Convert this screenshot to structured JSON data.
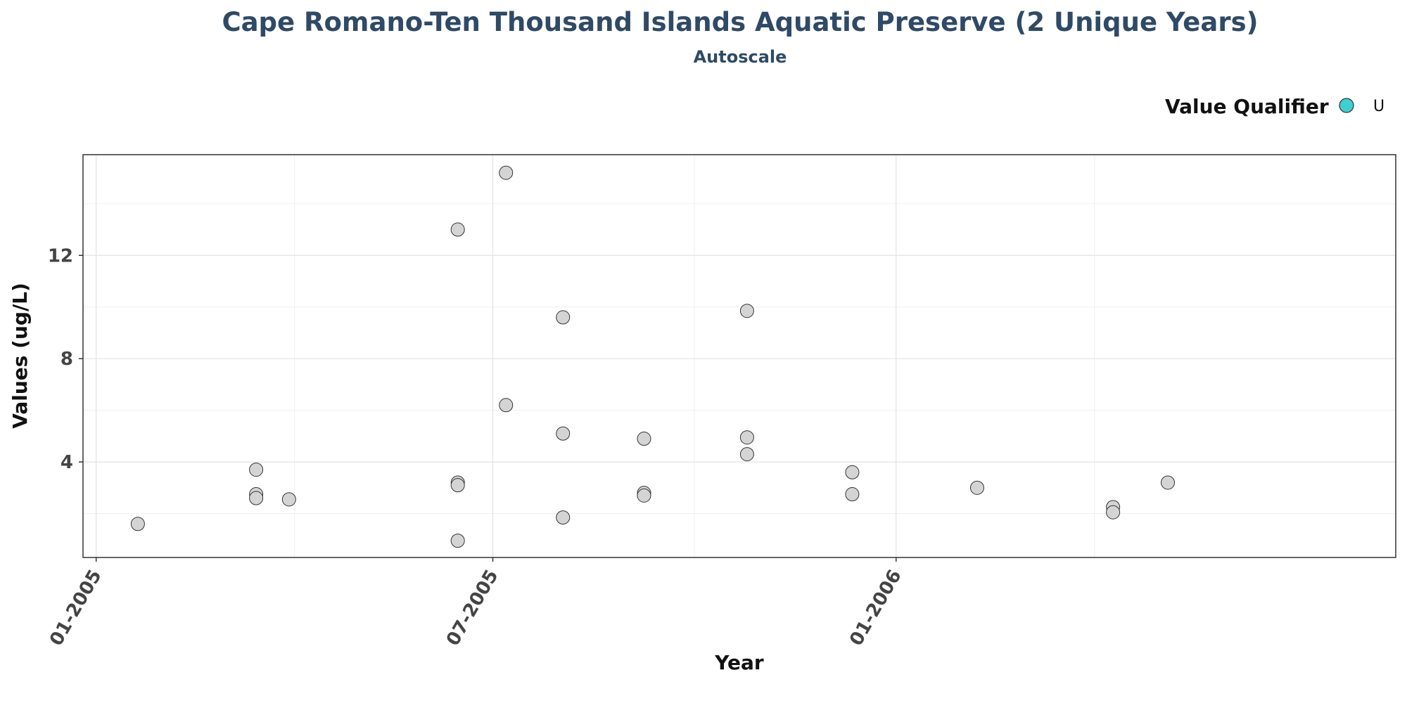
{
  "chart_data": {
    "type": "scatter",
    "title": "Cape Romano-Ten Thousand Islands Aquatic Preserve (2 Unique Years)",
    "subtitle": "Autoscale",
    "xlabel": "Year",
    "ylabel": "Values (ug/L)",
    "x_ticks": [
      "01-2005",
      "07-2005",
      "01-2006"
    ],
    "y_ticks": [
      4,
      8,
      12
    ],
    "xlim": [
      "2004-12-26",
      "2006-08-17"
    ],
    "ylim": [
      0.3,
      15.9
    ],
    "grid": true,
    "legend": {
      "title": "Value Qualifier",
      "position": "top-right",
      "entries": [
        {
          "label": "U",
          "color": "#3ecfd0"
        }
      ]
    },
    "point_color": "#d4d4d4",
    "points": [
      {
        "x": "2005-01-20",
        "y": 1.6
      },
      {
        "x": "2005-03-15",
        "y": 3.7
      },
      {
        "x": "2005-03-15",
        "y": 2.75
      },
      {
        "x": "2005-03-15",
        "y": 2.6
      },
      {
        "x": "2005-03-30",
        "y": 2.55
      },
      {
        "x": "2005-06-15",
        "y": 13.0
      },
      {
        "x": "2005-06-15",
        "y": 3.2
      },
      {
        "x": "2005-06-15",
        "y": 3.1
      },
      {
        "x": "2005-06-15",
        "y": 0.95
      },
      {
        "x": "2005-07-07",
        "y": 15.2
      },
      {
        "x": "2005-07-07",
        "y": 6.2
      },
      {
        "x": "2005-08-02",
        "y": 9.6
      },
      {
        "x": "2005-08-02",
        "y": 5.1
      },
      {
        "x": "2005-08-02",
        "y": 1.85
      },
      {
        "x": "2005-09-08",
        "y": 4.9
      },
      {
        "x": "2005-09-08",
        "y": 2.8
      },
      {
        "x": "2005-09-08",
        "y": 2.7
      },
      {
        "x": "2005-10-25",
        "y": 9.85
      },
      {
        "x": "2005-10-25",
        "y": 4.95
      },
      {
        "x": "2005-10-25",
        "y": 4.3
      },
      {
        "x": "2005-12-12",
        "y": 3.6
      },
      {
        "x": "2005-12-12",
        "y": 2.75
      },
      {
        "x": "2006-02-07",
        "y": 3.0
      },
      {
        "x": "2006-04-10",
        "y": 2.25
      },
      {
        "x": "2006-04-10",
        "y": 2.05
      },
      {
        "x": "2006-05-05",
        "y": 3.2
      }
    ]
  }
}
